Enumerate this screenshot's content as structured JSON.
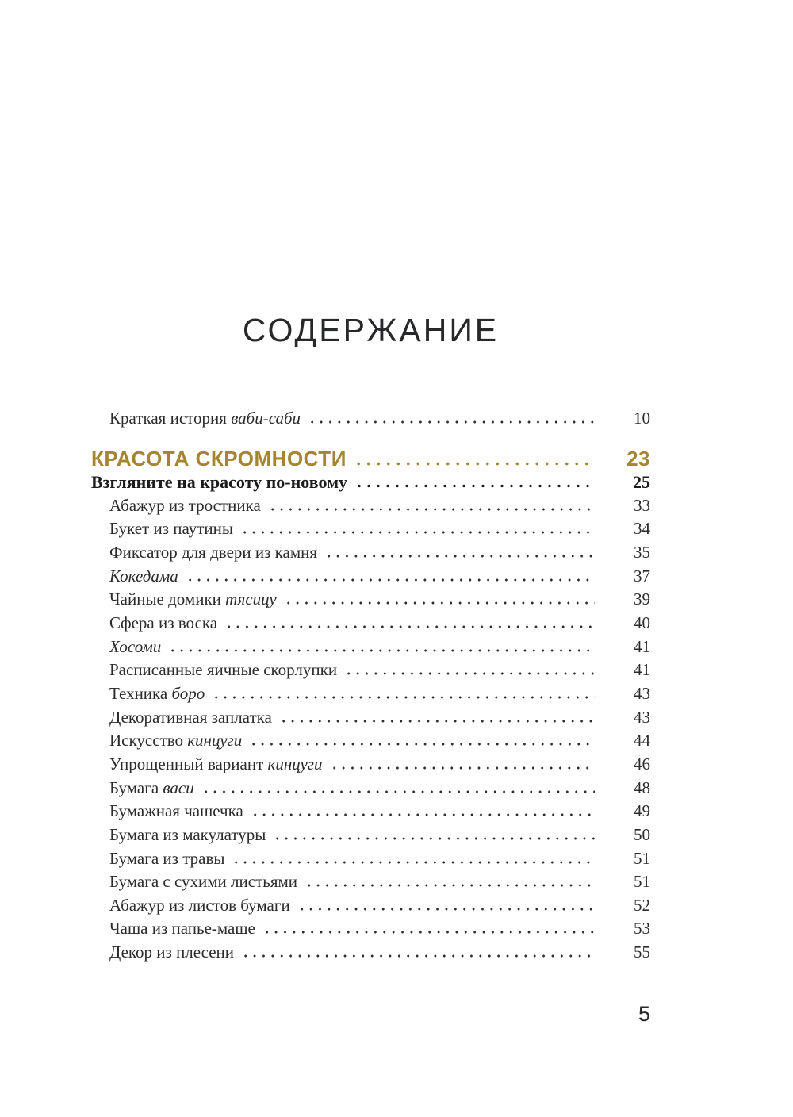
{
  "page": {
    "title": "СОДЕРЖАНИЕ",
    "folio": "5"
  },
  "colors": {
    "ink": "#2b2b2b",
    "gold": "#a5852f"
  },
  "toc": {
    "entries": [
      {
        "parts": [
          {
            "t": "Краткая история ",
            "i": false
          },
          {
            "t": "ваби-саби",
            "i": true
          }
        ],
        "page": "10",
        "style": "normal",
        "indent": true,
        "space_before": false
      },
      {
        "parts": [
          {
            "t": "КРАСОТА СКРОМНОСТИ",
            "i": false
          }
        ],
        "page": "23",
        "style": "section",
        "indent": false,
        "space_before": true
      },
      {
        "parts": [
          {
            "t": "Взгляните на красоту по-новому",
            "i": false
          }
        ],
        "page": "25",
        "style": "bold",
        "indent": false,
        "space_before": false
      },
      {
        "parts": [
          {
            "t": "Абажур из тростника",
            "i": false
          }
        ],
        "page": "33",
        "style": "normal",
        "indent": true,
        "space_before": false
      },
      {
        "parts": [
          {
            "t": "Букет из паутины",
            "i": false
          }
        ],
        "page": "34",
        "style": "normal",
        "indent": true,
        "space_before": false
      },
      {
        "parts": [
          {
            "t": "Фиксатор для двери из камня",
            "i": false
          }
        ],
        "page": "35",
        "style": "normal",
        "indent": true,
        "space_before": false
      },
      {
        "parts": [
          {
            "t": "Кокедама",
            "i": true
          }
        ],
        "page": "37",
        "style": "normal",
        "indent": true,
        "space_before": false
      },
      {
        "parts": [
          {
            "t": "Чайные домики ",
            "i": false
          },
          {
            "t": "тясицу",
            "i": true
          }
        ],
        "page": "39",
        "style": "normal",
        "indent": true,
        "space_before": false
      },
      {
        "parts": [
          {
            "t": "Сфера из воска",
            "i": false
          }
        ],
        "page": "40",
        "style": "normal",
        "indent": true,
        "space_before": false
      },
      {
        "parts": [
          {
            "t": "Хосоми",
            "i": true
          }
        ],
        "page": "41",
        "style": "normal",
        "indent": true,
        "space_before": false
      },
      {
        "parts": [
          {
            "t": "Расписанные яичные скорлупки",
            "i": false
          }
        ],
        "page": "41",
        "style": "normal",
        "indent": true,
        "space_before": false
      },
      {
        "parts": [
          {
            "t": "Техника ",
            "i": false
          },
          {
            "t": "боро",
            "i": true
          }
        ],
        "page": "43",
        "style": "normal",
        "indent": true,
        "space_before": false
      },
      {
        "parts": [
          {
            "t": "Декоративная заплатка",
            "i": false
          }
        ],
        "page": "43",
        "style": "normal",
        "indent": true,
        "space_before": false
      },
      {
        "parts": [
          {
            "t": "Искусство ",
            "i": false
          },
          {
            "t": "кинцуги",
            "i": true
          }
        ],
        "page": "44",
        "style": "normal",
        "indent": true,
        "space_before": false
      },
      {
        "parts": [
          {
            "t": "Упрощенный вариант ",
            "i": false
          },
          {
            "t": "кинцуги",
            "i": true
          }
        ],
        "page": "46",
        "style": "normal",
        "indent": true,
        "space_before": false
      },
      {
        "parts": [
          {
            "t": "Бумага ",
            "i": false
          },
          {
            "t": "васи",
            "i": true
          }
        ],
        "page": "48",
        "style": "normal",
        "indent": true,
        "space_before": false
      },
      {
        "parts": [
          {
            "t": "Бумажная чашечка",
            "i": false
          }
        ],
        "page": "49",
        "style": "normal",
        "indent": true,
        "space_before": false
      },
      {
        "parts": [
          {
            "t": "Бумага из макулатуры",
            "i": false
          }
        ],
        "page": "50",
        "style": "normal",
        "indent": true,
        "space_before": false
      },
      {
        "parts": [
          {
            "t": "Бумага из травы",
            "i": false
          }
        ],
        "page": "51",
        "style": "normal",
        "indent": true,
        "space_before": false
      },
      {
        "parts": [
          {
            "t": "Бумага с сухими листьями",
            "i": false
          }
        ],
        "page": "51",
        "style": "normal",
        "indent": true,
        "space_before": false
      },
      {
        "parts": [
          {
            "t": "Абажур из листов бумаги",
            "i": false
          }
        ],
        "page": "52",
        "style": "normal",
        "indent": true,
        "space_before": false
      },
      {
        "parts": [
          {
            "t": "Чаша из папье-маше",
            "i": false
          }
        ],
        "page": "53",
        "style": "normal",
        "indent": true,
        "space_before": false
      },
      {
        "parts": [
          {
            "t": "Декор из плесени",
            "i": false
          }
        ],
        "page": "55",
        "style": "normal",
        "indent": true,
        "space_before": false
      }
    ]
  }
}
